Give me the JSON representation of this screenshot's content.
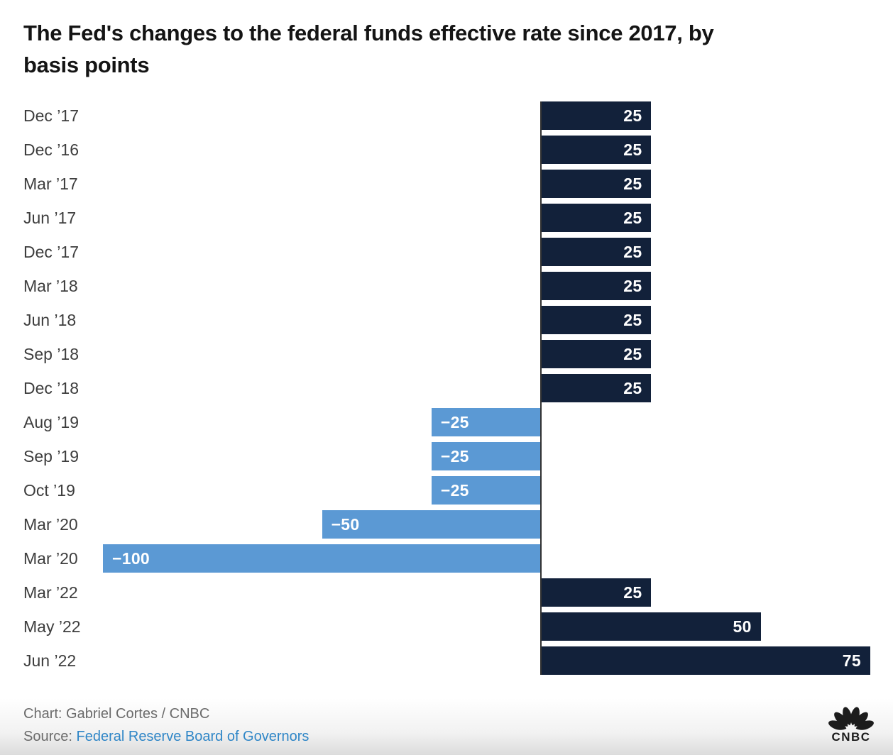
{
  "header": {
    "title": "The Fed's changes to the federal funds effective rate since 2017, by basis points",
    "title_lines": [
      "The Fed's changes to the federal funds effective rate since 2017, by",
      "basis points"
    ]
  },
  "chart_data": {
    "type": "bar",
    "orientation": "horizontal",
    "unit": "basis points",
    "categories": [
      "Dec ’17",
      "Dec ’16",
      "Mar ’17",
      "Jun ’17",
      "Dec ’17",
      "Mar ’18",
      "Jun ’18",
      "Sep ’18",
      "Dec ’18",
      "Aug ’19",
      "Sep ’19",
      "Oct ’19",
      "Mar ’20",
      "Mar ’20",
      "Mar ’22",
      "May ’22",
      "Jun ’22"
    ],
    "values": [
      25,
      25,
      25,
      25,
      25,
      25,
      25,
      25,
      25,
      -25,
      -25,
      -25,
      -50,
      -100,
      25,
      50,
      75
    ],
    "value_labels": [
      "25",
      "25",
      "25",
      "25",
      "25",
      "25",
      "25",
      "25",
      "25",
      "−25",
      "−25",
      "−25",
      "−50",
      "−100",
      "25",
      "50",
      "75"
    ],
    "xlim": [
      -100,
      75
    ],
    "grid": false,
    "legend": false,
    "colors": {
      "positive_bar": "#12213a",
      "negative_bar": "#5b99d4",
      "value_label": "#ffffff",
      "axis_line": "#333333",
      "category_label": "#3d3d3d"
    }
  },
  "footer": {
    "chart_credit": "Chart: Gabriel Cortes / CNBC",
    "source_label": "Source:",
    "source_link": "Federal Reserve Board of Governors",
    "source_link_color": "#2f86c7",
    "logo_text": "CNBC"
  }
}
